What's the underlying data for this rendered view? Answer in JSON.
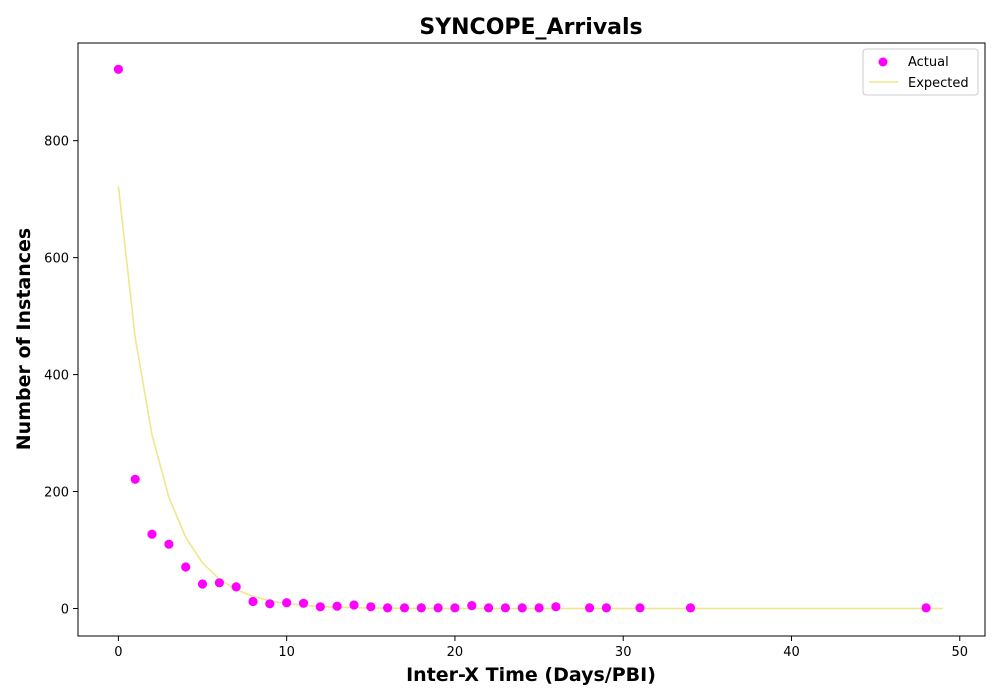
{
  "chart_data": {
    "type": "scatter",
    "title": "SYNCOPE_Arrivals",
    "xlabel": "Inter-X Time (Days/PBI)",
    "ylabel": "Number of Instances",
    "xlim": [
      -2.4,
      51.5
    ],
    "ylim": [
      -47,
      967
    ],
    "x_ticks": [
      0,
      10,
      20,
      30,
      40,
      50
    ],
    "y_ticks": [
      0,
      200,
      400,
      600,
      800
    ],
    "grid": false,
    "legend_position": "top-right",
    "series": [
      {
        "name": "Actual",
        "kind": "scatter",
        "color": "#ff00ff",
        "points": [
          [
            0,
            922
          ],
          [
            1,
            221
          ],
          [
            2,
            127
          ],
          [
            3,
            110
          ],
          [
            4,
            71
          ],
          [
            5,
            42
          ],
          [
            6,
            44
          ],
          [
            7,
            37
          ],
          [
            8,
            12
          ],
          [
            9,
            8
          ],
          [
            10,
            10
          ],
          [
            11,
            9
          ],
          [
            12,
            3
          ],
          [
            13,
            4
          ],
          [
            14,
            6
          ],
          [
            15,
            3
          ],
          [
            16,
            1
          ],
          [
            17,
            1
          ],
          [
            18,
            1
          ],
          [
            19,
            1
          ],
          [
            20,
            1
          ],
          [
            21,
            5
          ],
          [
            22,
            1
          ],
          [
            23,
            1
          ],
          [
            24,
            1
          ],
          [
            25,
            1
          ],
          [
            26,
            3
          ],
          [
            28,
            1
          ],
          [
            29,
            1
          ],
          [
            31,
            1
          ],
          [
            34,
            1
          ],
          [
            48,
            1
          ]
        ]
      },
      {
        "name": "Expected",
        "kind": "line",
        "color": "#f0e68c",
        "points": [
          [
            0,
            722
          ],
          [
            1,
            463
          ],
          [
            2,
            297
          ],
          [
            3,
            190
          ],
          [
            4,
            122
          ],
          [
            5,
            78
          ],
          [
            6,
            50
          ],
          [
            7,
            32
          ],
          [
            8,
            21
          ],
          [
            9,
            13
          ],
          [
            10,
            8.5
          ],
          [
            11,
            5.5
          ],
          [
            12,
            3.5
          ],
          [
            13,
            2.2
          ],
          [
            14,
            1.4
          ],
          [
            15,
            0.9
          ],
          [
            16,
            0.6
          ],
          [
            17,
            0.4
          ],
          [
            18,
            0.25
          ],
          [
            19,
            0.16
          ],
          [
            20,
            0.1
          ],
          [
            22,
            0.04
          ],
          [
            25,
            0.01
          ],
          [
            30,
            0
          ],
          [
            35,
            0
          ],
          [
            40,
            0
          ],
          [
            45,
            0
          ],
          [
            49,
            0
          ]
        ]
      }
    ]
  }
}
